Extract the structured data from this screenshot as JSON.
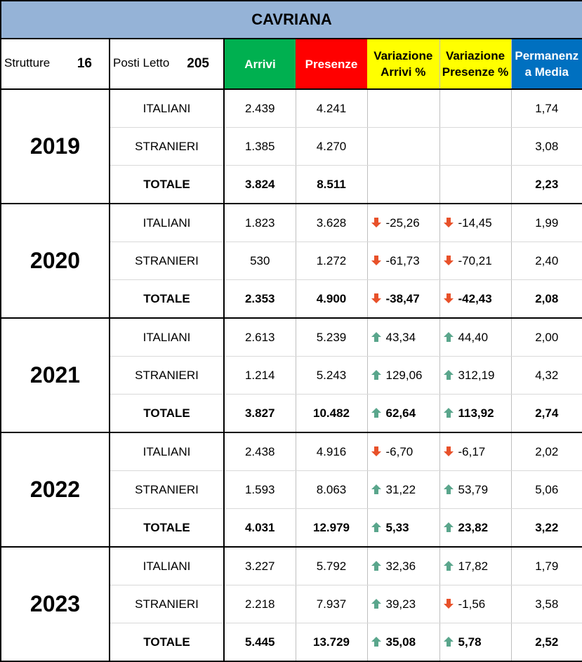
{
  "title": "CAVRIANA",
  "header": {
    "strutture_label": "Strutture",
    "strutture_value": "16",
    "posti_label": "Posti Letto",
    "posti_value": "205",
    "arrivi": "Arrivi",
    "presenze": "Presenze",
    "var_arrivi_l1": "Variazione",
    "var_arrivi_l2": "Arrivi %",
    "var_presenze_l1": "Variazione",
    "var_presenze_l2": "Presenze %",
    "perm_l1": "Permanenz",
    "perm_l2": "a Media"
  },
  "colors": {
    "title_bg": "#95b3d7",
    "arrivi_bg": "#00b050",
    "presenze_bg": "#ff0000",
    "variazione_bg": "#ffff00",
    "permanenza_bg": "#0070c0",
    "arrow_up": "#5aa68c",
    "arrow_down": "#e8512a"
  },
  "years": [
    {
      "year": "2019",
      "rows": [
        {
          "label": "ITALIANI",
          "arrivi": "2.439",
          "presenze": "4.241",
          "var_arrivi": "",
          "var_arrivi_dir": "",
          "var_presenze": "",
          "var_presenze_dir": "",
          "perm": "1,74"
        },
        {
          "label": "STRANIERI",
          "arrivi": "1.385",
          "presenze": "4.270",
          "var_arrivi": "",
          "var_arrivi_dir": "",
          "var_presenze": "",
          "var_presenze_dir": "",
          "perm": "3,08"
        },
        {
          "label": "TOTALE",
          "arrivi": "3.824",
          "presenze": "8.511",
          "var_arrivi": "",
          "var_arrivi_dir": "",
          "var_presenze": "",
          "var_presenze_dir": "",
          "perm": "2,23"
        }
      ]
    },
    {
      "year": "2020",
      "rows": [
        {
          "label": "ITALIANI",
          "arrivi": "1.823",
          "presenze": "3.628",
          "var_arrivi": "-25,26",
          "var_arrivi_dir": "down",
          "var_presenze": "-14,45",
          "var_presenze_dir": "down",
          "perm": "1,99"
        },
        {
          "label": "STRANIERI",
          "arrivi": "530",
          "presenze": "1.272",
          "var_arrivi": "-61,73",
          "var_arrivi_dir": "down",
          "var_presenze": "-70,21",
          "var_presenze_dir": "down",
          "perm": "2,40"
        },
        {
          "label": "TOTALE",
          "arrivi": "2.353",
          "presenze": "4.900",
          "var_arrivi": "-38,47",
          "var_arrivi_dir": "down",
          "var_presenze": "-42,43",
          "var_presenze_dir": "down",
          "perm": "2,08"
        }
      ]
    },
    {
      "year": "2021",
      "rows": [
        {
          "label": "ITALIANI",
          "arrivi": "2.613",
          "presenze": "5.239",
          "var_arrivi": "43,34",
          "var_arrivi_dir": "up",
          "var_presenze": "44,40",
          "var_presenze_dir": "up",
          "perm": "2,00"
        },
        {
          "label": "STRANIERI",
          "arrivi": "1.214",
          "presenze": "5.243",
          "var_arrivi": "129,06",
          "var_arrivi_dir": "up",
          "var_presenze": "312,19",
          "var_presenze_dir": "up",
          "perm": "4,32"
        },
        {
          "label": "TOTALE",
          "arrivi": "3.827",
          "presenze": "10.482",
          "var_arrivi": "62,64",
          "var_arrivi_dir": "up",
          "var_presenze": "113,92",
          "var_presenze_dir": "up",
          "perm": "2,74"
        }
      ]
    },
    {
      "year": "2022",
      "rows": [
        {
          "label": "ITALIANI",
          "arrivi": "2.438",
          "presenze": "4.916",
          "var_arrivi": "-6,70",
          "var_arrivi_dir": "down",
          "var_presenze": "-6,17",
          "var_presenze_dir": "down",
          "perm": "2,02"
        },
        {
          "label": "STRANIERI",
          "arrivi": "1.593",
          "presenze": "8.063",
          "var_arrivi": "31,22",
          "var_arrivi_dir": "up",
          "var_presenze": "53,79",
          "var_presenze_dir": "up",
          "perm": "5,06"
        },
        {
          "label": "TOTALE",
          "arrivi": "4.031",
          "presenze": "12.979",
          "var_arrivi": "5,33",
          "var_arrivi_dir": "up",
          "var_presenze": "23,82",
          "var_presenze_dir": "up",
          "perm": "3,22"
        }
      ]
    },
    {
      "year": "2023",
      "rows": [
        {
          "label": "ITALIANI",
          "arrivi": "3.227",
          "presenze": "5.792",
          "var_arrivi": "32,36",
          "var_arrivi_dir": "up",
          "var_presenze": "17,82",
          "var_presenze_dir": "up",
          "perm": "1,79"
        },
        {
          "label": "STRANIERI",
          "arrivi": "2.218",
          "presenze": "7.937",
          "var_arrivi": "39,23",
          "var_arrivi_dir": "up",
          "var_presenze": "-1,56",
          "var_presenze_dir": "down",
          "perm": "3,58"
        },
        {
          "label": "TOTALE",
          "arrivi": "5.445",
          "presenze": "13.729",
          "var_arrivi": "35,08",
          "var_arrivi_dir": "up",
          "var_presenze": "5,78",
          "var_presenze_dir": "up",
          "perm": "2,52"
        }
      ]
    }
  ]
}
